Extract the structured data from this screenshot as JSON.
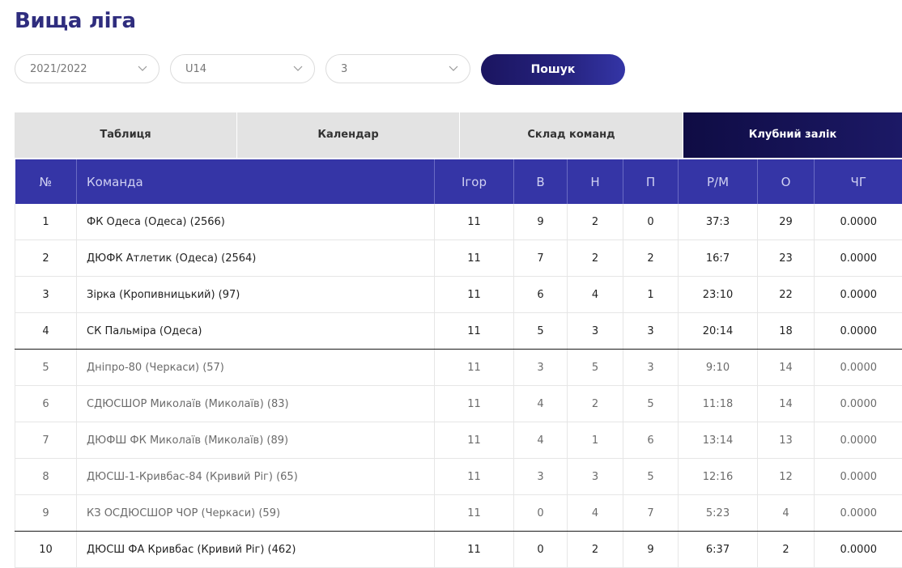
{
  "title": "Вища ліга",
  "filters": {
    "season": "2021/2022",
    "age_group": "U14",
    "round": "3",
    "search_label": "Пошук"
  },
  "tabs": [
    {
      "label": "Таблиця",
      "active": false
    },
    {
      "label": "Календар",
      "active": false
    },
    {
      "label": "Склад команд",
      "active": false
    },
    {
      "label": "Клубний залік",
      "active": true
    }
  ],
  "table": {
    "columns": [
      "№",
      "Команда",
      "Ігор",
      "В",
      "Н",
      "П",
      "Р/М",
      "О",
      "ЧГ"
    ],
    "rows": [
      {
        "pos": "1",
        "team": "ФК Одеса (Одеса) (2566)",
        "games": "11",
        "w": "9",
        "d": "2",
        "l": "0",
        "goals": "37:3",
        "pts": "29",
        "cg": "0.0000",
        "zone": "top"
      },
      {
        "pos": "2",
        "team": "ДЮФК Атлетик (Одеса) (2564)",
        "games": "11",
        "w": "7",
        "d": "2",
        "l": "2",
        "goals": "16:7",
        "pts": "23",
        "cg": "0.0000",
        "zone": "top"
      },
      {
        "pos": "3",
        "team": "Зірка (Кропивницький) (97)",
        "games": "11",
        "w": "6",
        "d": "4",
        "l": "1",
        "goals": "23:10",
        "pts": "22",
        "cg": "0.0000",
        "zone": "top"
      },
      {
        "pos": "4",
        "team": "СК Пальміра (Одеса)",
        "games": "11",
        "w": "5",
        "d": "3",
        "l": "3",
        "goals": "20:14",
        "pts": "18",
        "cg": "0.0000",
        "zone": "top",
        "divider": true
      },
      {
        "pos": "5",
        "team": "Дніпро-80 (Черкаси) (57)",
        "games": "11",
        "w": "3",
        "d": "5",
        "l": "3",
        "goals": "9:10",
        "pts": "14",
        "cg": "0.0000",
        "zone": "mid"
      },
      {
        "pos": "6",
        "team": "СДЮСШОР Миколаїв (Миколаїв) (83)",
        "games": "11",
        "w": "4",
        "d": "2",
        "l": "5",
        "goals": "11:18",
        "pts": "14",
        "cg": "0.0000",
        "zone": "mid"
      },
      {
        "pos": "7",
        "team": "ДЮФШ ФК Миколаїв (Миколаїв) (89)",
        "games": "11",
        "w": "4",
        "d": "1",
        "l": "6",
        "goals": "13:14",
        "pts": "13",
        "cg": "0.0000",
        "zone": "mid"
      },
      {
        "pos": "8",
        "team": "ДЮСШ-1-Кривбас-84 (Кривий Ріг) (65)",
        "games": "11",
        "w": "3",
        "d": "3",
        "l": "5",
        "goals": "12:16",
        "pts": "12",
        "cg": "0.0000",
        "zone": "mid"
      },
      {
        "pos": "9",
        "team": "КЗ ОСДЮСШОР ЧОР (Черкаси) (59)",
        "games": "11",
        "w": "0",
        "d": "4",
        "l": "7",
        "goals": "5:23",
        "pts": "4",
        "cg": "0.0000",
        "zone": "mid",
        "divider": true
      },
      {
        "pos": "10",
        "team": "ДЮСШ ФА Кривбас (Кривий Ріг) (462)",
        "games": "11",
        "w": "0",
        "d": "2",
        "l": "9",
        "goals": "6:37",
        "pts": "2",
        "cg": "0.0000",
        "zone": "top"
      }
    ]
  },
  "colors": {
    "title": "#2f2d7e",
    "header_bg": "#3535a6",
    "active_tab": "#0f0c44",
    "tab_bg": "#e3e3e3"
  }
}
